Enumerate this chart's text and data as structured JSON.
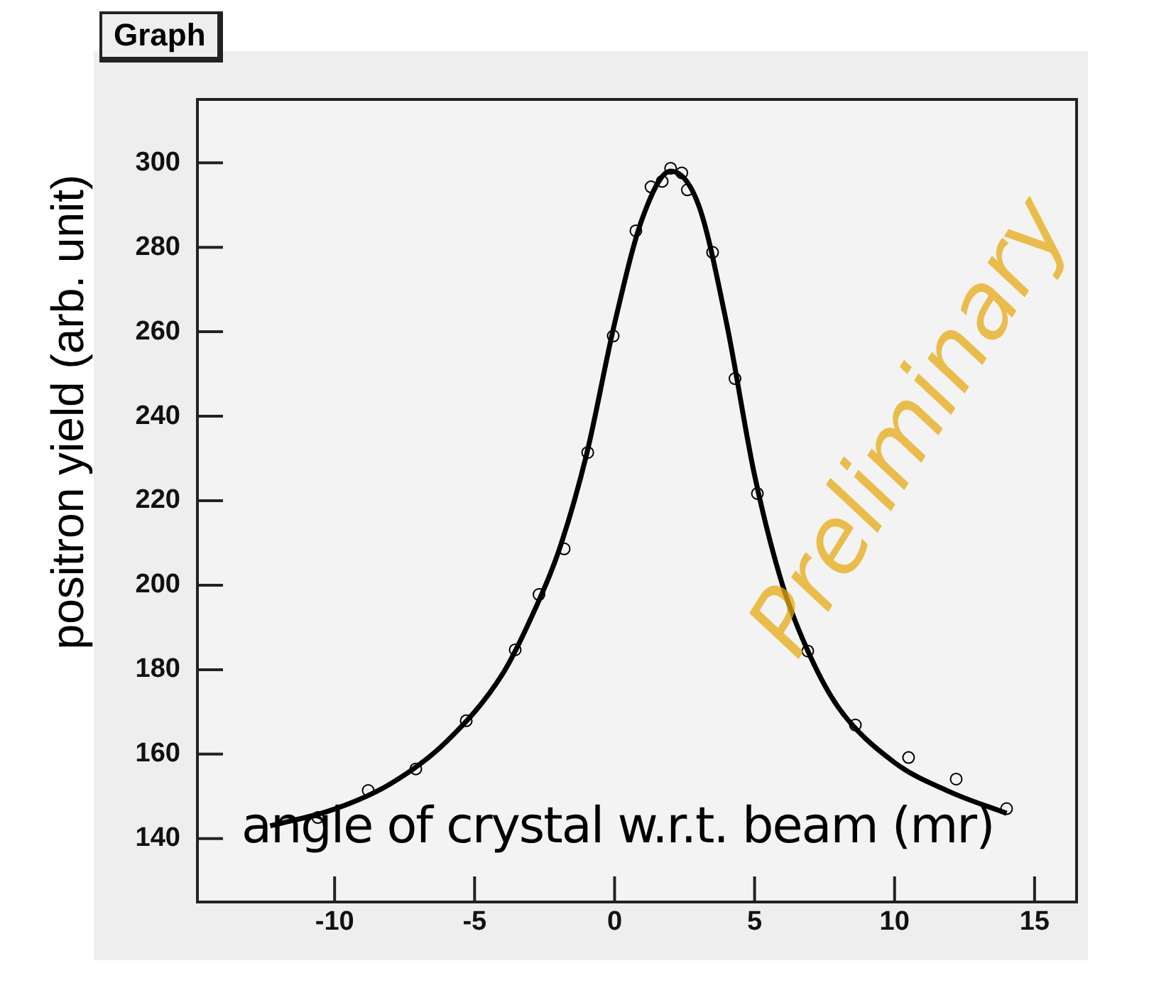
{
  "chart_data": {
    "type": "scatter",
    "title": "Graph",
    "xlabel": "angle of crystal w.r.t. beam (mr)",
    "ylabel": "positron yield (arb. unit)",
    "annotations": [
      "Preliminary"
    ],
    "xlim": [
      -14.9,
      16.5
    ],
    "ylim": [
      125,
      315
    ],
    "xticks": [
      -10,
      -5,
      0,
      5,
      10,
      15
    ],
    "yticks": [
      140,
      160,
      180,
      200,
      220,
      240,
      260,
      280,
      300
    ],
    "grid": false,
    "legend": false,
    "marker": "circle",
    "series": [
      {
        "color": "#000000",
        "x": [
          -10.6,
          -8.8,
          -7.1,
          -5.3,
          -3.55,
          -2.7,
          -1.8,
          -0.96,
          -0.05,
          0.76,
          1.3,
          1.7,
          2.0,
          2.4,
          2.6,
          3.5,
          4.3,
          5.1,
          6.9,
          8.6,
          10.5,
          12.2,
          14.0
        ],
        "values": [
          145.0,
          151.4,
          156.5,
          167.9,
          184.7,
          197.8,
          208.6,
          231.4,
          259.0,
          283.9,
          294.3,
          295.6,
          298.7,
          297.6,
          293.6,
          278.8,
          248.9,
          221.7,
          184.4,
          166.9,
          159.2,
          154.1,
          147.1
        ]
      },
      {
        "type": "line",
        "color": "#000000",
        "marker": "none",
        "x": [
          -12.3,
          -10,
          -8,
          -6,
          -4,
          -3,
          -2,
          -1,
          0,
          1,
          2,
          3,
          4,
          5,
          6,
          7,
          8,
          10,
          12,
          14
        ],
        "values": [
          143,
          147,
          153,
          163,
          179,
          192,
          208,
          231,
          262,
          287,
          298,
          290,
          262,
          226,
          200,
          183,
          171,
          158,
          151,
          146
        ]
      }
    ]
  }
}
